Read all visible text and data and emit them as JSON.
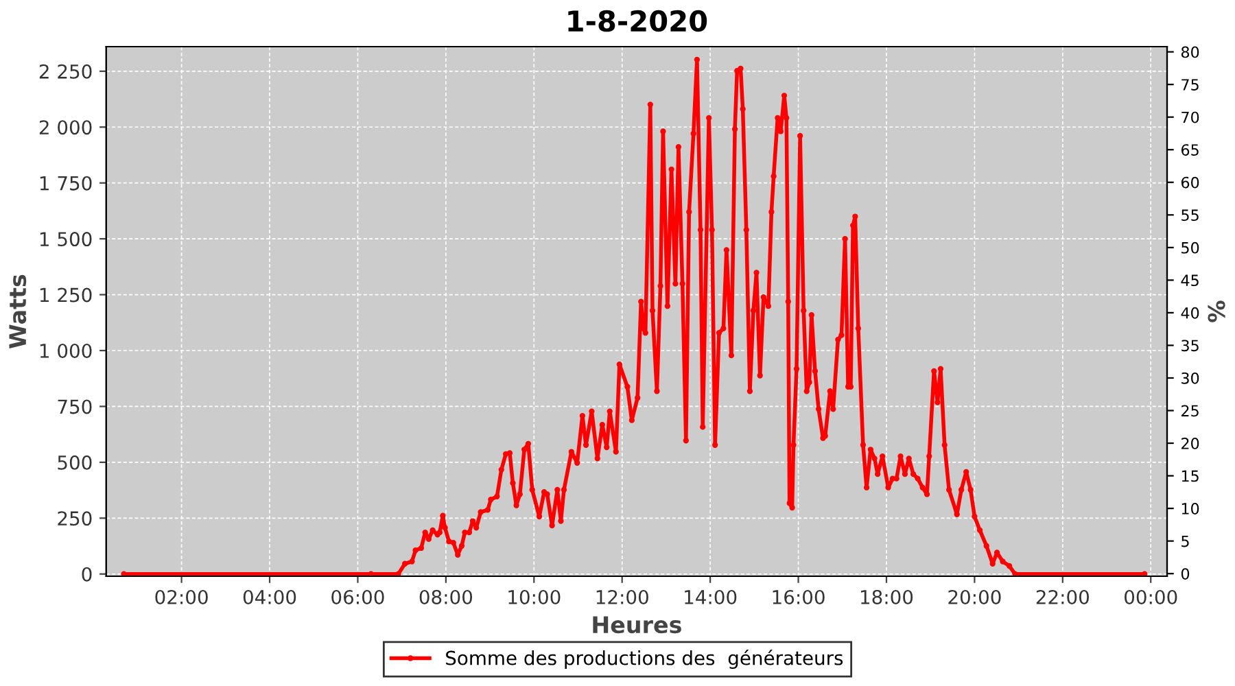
{
  "chart_data": {
    "type": "line",
    "title": "1-8-2020",
    "xlabel": "Heures",
    "ylabel": "Watts",
    "y2label": "%",
    "xlim": [
      0.29,
      24.37
    ],
    "ylim": [
      -10,
      2360
    ],
    "y2lim": [
      -0.4,
      80.8
    ],
    "xticks": [
      {
        "value": 2,
        "label": "02:00"
      },
      {
        "value": 4,
        "label": "04:00"
      },
      {
        "value": 6,
        "label": "06:00"
      },
      {
        "value": 8,
        "label": "08:00"
      },
      {
        "value": 10,
        "label": "10:00"
      },
      {
        "value": 12,
        "label": "12:00"
      },
      {
        "value": 14,
        "label": "14:00"
      },
      {
        "value": 16,
        "label": "16:00"
      },
      {
        "value": 18,
        "label": "18:00"
      },
      {
        "value": 20,
        "label": "20:00"
      },
      {
        "value": 22,
        "label": "22:00"
      },
      {
        "value": 24,
        "label": "00:00"
      }
    ],
    "yticks": [
      0,
      250,
      500,
      750,
      {
        "value": 1000,
        "label": "1 000"
      },
      {
        "value": 1250,
        "label": "1 250"
      },
      {
        "value": 1500,
        "label": "1 500"
      },
      {
        "value": 1750,
        "label": "1 750"
      },
      {
        "value": 2000,
        "label": "2 000"
      },
      {
        "value": 2250,
        "label": "2 250"
      }
    ],
    "y2ticks": [
      0,
      5,
      10,
      15,
      20,
      25,
      30,
      35,
      40,
      45,
      50,
      55,
      60,
      65,
      70,
      75,
      80
    ],
    "grid": true,
    "legend": "bottom",
    "marker": "circle",
    "line_style": "solid",
    "series": [
      {
        "name": "Somme des productions des  générateurs",
        "color": "#ff0000",
        "x": [
          0.69,
          6.3,
          6.92,
          7.07,
          7.23,
          7.31,
          7.44,
          7.53,
          7.61,
          7.7,
          7.81,
          7.86,
          7.93,
          7.98,
          8.07,
          8.17,
          8.27,
          8.36,
          8.43,
          8.53,
          8.61,
          8.69,
          8.79,
          8.95,
          9.02,
          9.16,
          9.26,
          9.36,
          9.45,
          9.52,
          9.6,
          9.68,
          9.78,
          9.87,
          9.96,
          10.12,
          10.23,
          10.3,
          10.41,
          10.53,
          10.61,
          10.68,
          10.85,
          10.98,
          11.1,
          11.18,
          11.31,
          11.44,
          11.55,
          11.65,
          11.72,
          11.86,
          11.94,
          12.12,
          12.22,
          12.35,
          12.43,
          12.48,
          12.53,
          12.64,
          12.69,
          12.79,
          12.87,
          12.93,
          13.03,
          13.12,
          13.21,
          13.28,
          13.37,
          13.45,
          13.52,
          13.62,
          13.7,
          13.78,
          13.83,
          13.97,
          14.04,
          14.11,
          14.2,
          14.3,
          14.37,
          14.48,
          14.56,
          14.61,
          14.69,
          14.74,
          14.82,
          14.9,
          14.98,
          15.05,
          15.13,
          15.21,
          15.32,
          15.39,
          15.44,
          15.53,
          15.6,
          15.68,
          15.73,
          15.77,
          15.8,
          15.86,
          15.89,
          15.96,
          16.04,
          16.12,
          16.19,
          16.25,
          16.3,
          16.38,
          16.46,
          16.56,
          16.61,
          16.72,
          16.79,
          16.9,
          16.98,
          17.06,
          17.13,
          17.19,
          17.24,
          17.29,
          17.36,
          17.47,
          17.55,
          17.64,
          17.73,
          17.8,
          17.91,
          18.04,
          18.14,
          18.23,
          18.32,
          18.42,
          18.51,
          18.61,
          18.71,
          18.82,
          18.92,
          18.97,
          19.08,
          19.16,
          19.23,
          19.32,
          19.42,
          19.6,
          19.7,
          19.81,
          19.91,
          20.0,
          20.12,
          20.27,
          20.41,
          20.51,
          20.64,
          20.79,
          20.92,
          23.86
        ],
        "values": [
          0,
          0,
          0,
          46,
          56,
          106,
          116,
          186,
          156,
          196,
          176,
          186,
          261,
          207,
          146,
          140,
          86,
          126,
          186,
          186,
          237,
          207,
          277,
          287,
          333,
          347,
          467,
          537,
          541,
          407,
          307,
          357,
          557,
          583,
          377,
          257,
          367,
          357,
          217,
          377,
          237,
          377,
          547,
          497,
          708,
          577,
          728,
          517,
          668,
          567,
          728,
          547,
          938,
          838,
          688,
          788,
          1219,
          1099,
          1079,
          2101,
          1179,
          818,
          1289,
          1981,
          1199,
          1811,
          1299,
          1911,
          1299,
          597,
          1620,
          1971,
          2302,
          1540,
          658,
          2041,
          1540,
          577,
          1079,
          1099,
          1450,
          978,
          1991,
          2252,
          2262,
          2081,
          1540,
          818,
          1179,
          1349,
          888,
          1239,
          1199,
          1620,
          1780,
          2041,
          1981,
          2141,
          2041,
          1219,
          317,
          297,
          577,
          918,
          1961,
          1179,
          818,
          858,
          1159,
          908,
          738,
          608,
          618,
          818,
          738,
          1049,
          1069,
          1500,
          838,
          838,
          1560,
          1600,
          1099,
          577,
          387,
          557,
          517,
          447,
          527,
          387,
          427,
          427,
          527,
          447,
          517,
          447,
          427,
          387,
          357,
          527,
          908,
          768,
          918,
          577,
          377,
          267,
          377,
          457,
          377,
          257,
          196,
          126,
          46,
          96,
          56,
          36,
          0,
          0
        ]
      }
    ]
  }
}
